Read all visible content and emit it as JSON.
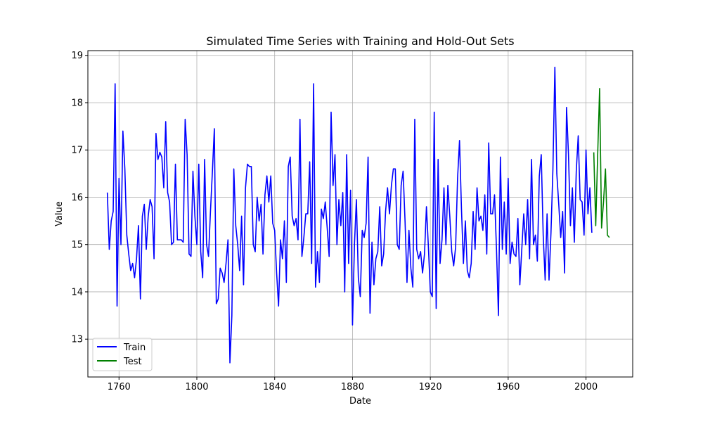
{
  "chart_data": {
    "type": "line",
    "title": "Simulated Time Series with Training and Hold-Out Sets",
    "xlabel": "Date",
    "ylabel": "Value",
    "xlim": [
      1744,
      2024
    ],
    "ylim": [
      12.2,
      19.1
    ],
    "x_ticks": [
      1760,
      1800,
      1840,
      1880,
      1920,
      1960,
      2000
    ],
    "y_ticks": [
      13,
      14,
      15,
      16,
      17,
      18,
      19
    ],
    "grid": true,
    "legend_position": "bottom-left",
    "series": [
      {
        "name": "Train",
        "color": "#0000ff",
        "x": [
          1754,
          1755,
          1756,
          1757,
          1758,
          1759,
          1760,
          1761,
          1762,
          1763,
          1764,
          1765,
          1766,
          1767,
          1768,
          1769,
          1770,
          1771,
          1772,
          1773,
          1774,
          1775,
          1776,
          1777,
          1778,
          1779,
          1780,
          1781,
          1782,
          1783,
          1784,
          1785,
          1786,
          1787,
          1788,
          1789,
          1790,
          1791,
          1792,
          1793,
          1794,
          1795,
          1796,
          1797,
          1798,
          1799,
          1800,
          1801,
          1802,
          1803,
          1804,
          1805,
          1806,
          1807,
          1808,
          1809,
          1810,
          1811,
          1812,
          1813,
          1814,
          1815,
          1816,
          1817,
          1818,
          1819,
          1820,
          1821,
          1822,
          1823,
          1824,
          1825,
          1826,
          1827,
          1828,
          1829,
          1830,
          1831,
          1832,
          1833,
          1834,
          1835,
          1836,
          1837,
          1838,
          1839,
          1840,
          1841,
          1842,
          1843,
          1844,
          1845,
          1846,
          1847,
          1848,
          1849,
          1850,
          1851,
          1852,
          1853,
          1854,
          1855,
          1856,
          1857,
          1858,
          1859,
          1860,
          1861,
          1862,
          1863,
          1864,
          1865,
          1866,
          1867,
          1868,
          1869,
          1870,
          1871,
          1872,
          1873,
          1874,
          1875,
          1876,
          1877,
          1878,
          1879,
          1880,
          1881,
          1882,
          1883,
          1884,
          1885,
          1886,
          1887,
          1888,
          1889,
          1890,
          1891,
          1892,
          1893,
          1894,
          1895,
          1896,
          1897,
          1898,
          1899,
          1900,
          1901,
          1902,
          1903,
          1904,
          1905,
          1906,
          1907,
          1908,
          1909,
          1910,
          1911,
          1912,
          1913,
          1914,
          1915,
          1916,
          1917,
          1918,
          1919,
          1920,
          1921,
          1922,
          1923,
          1924,
          1925,
          1926,
          1927,
          1928,
          1929,
          1930,
          1931,
          1932,
          1933,
          1934,
          1935,
          1936,
          1937,
          1938,
          1939,
          1940,
          1941,
          1942,
          1943,
          1944,
          1945,
          1946,
          1947,
          1948,
          1949,
          1950,
          1951,
          1952,
          1953,
          1954,
          1955,
          1956,
          1957,
          1958,
          1959,
          1960,
          1961,
          1962,
          1963,
          1964,
          1965,
          1966,
          1967,
          1968,
          1969,
          1970,
          1971,
          1972,
          1973,
          1974,
          1975,
          1976,
          1977,
          1978,
          1979,
          1980,
          1981,
          1982,
          1983,
          1984,
          1985,
          1986,
          1987,
          1988,
          1989,
          1990,
          1991,
          1992,
          1993,
          1994,
          1995,
          1996,
          1997,
          1998,
          1999,
          2000,
          2001,
          2002,
          2003
        ],
        "values": [
          16.1,
          14.9,
          15.5,
          15.7,
          18.4,
          13.7,
          16.4,
          15.0,
          17.4,
          16.6,
          15.2,
          14.8,
          14.45,
          14.6,
          14.3,
          14.7,
          15.4,
          13.85,
          15.6,
          15.85,
          14.9,
          15.6,
          15.95,
          15.8,
          14.7,
          17.35,
          16.8,
          16.95,
          16.85,
          16.2,
          17.6,
          16.1,
          15.9,
          15.0,
          15.05,
          16.7,
          15.1,
          15.1,
          15.1,
          15.05,
          17.65,
          16.9,
          14.8,
          14.75,
          16.55,
          15.6,
          15.0,
          16.7,
          14.85,
          14.3,
          16.8,
          15.0,
          14.75,
          15.7,
          16.55,
          17.45,
          13.75,
          13.85,
          14.5,
          14.4,
          14.2,
          14.6,
          15.1,
          12.5,
          13.5,
          16.6,
          15.4,
          15.0,
          14.45,
          15.6,
          14.15,
          16.2,
          16.7,
          16.65,
          16.65,
          15.0,
          14.85,
          16.0,
          15.5,
          15.85,
          14.8,
          16.05,
          16.45,
          15.9,
          16.45,
          15.45,
          15.3,
          14.4,
          13.7,
          15.1,
          14.7,
          15.5,
          14.2,
          16.65,
          16.85,
          15.6,
          15.4,
          15.55,
          15.1,
          17.65,
          14.75,
          15.15,
          15.65,
          15.65,
          16.75,
          14.6,
          18.4,
          14.1,
          14.85,
          14.2,
          15.75,
          15.55,
          15.9,
          15.35,
          14.75,
          17.8,
          16.25,
          16.9,
          15.0,
          15.95,
          15.4,
          16.1,
          14.0,
          16.9,
          14.6,
          16.15,
          13.3,
          15.0,
          15.95,
          14.3,
          13.9,
          15.3,
          15.15,
          15.45,
          16.85,
          13.55,
          15.05,
          14.15,
          14.7,
          14.85,
          15.8,
          14.55,
          14.8,
          15.7,
          16.2,
          15.65,
          16.25,
          16.6,
          16.6,
          15.0,
          14.9,
          16.25,
          16.55,
          15.5,
          14.2,
          15.3,
          14.5,
          14.1,
          17.65,
          14.9,
          14.7,
          14.85,
          14.4,
          14.8,
          15.8,
          14.95,
          14.0,
          13.9,
          17.8,
          13.65,
          16.8,
          14.6,
          15.1,
          16.2,
          15.0,
          16.25,
          15.6,
          14.85,
          14.55,
          14.95,
          16.4,
          17.2,
          15.75,
          14.6,
          15.5,
          14.45,
          14.3,
          14.6,
          15.7,
          14.9,
          16.2,
          15.5,
          15.6,
          15.3,
          16.05,
          14.8,
          17.15,
          15.65,
          15.65,
          16.05,
          14.9,
          13.5,
          16.85,
          14.9,
          15.9,
          14.8,
          16.4,
          14.6,
          15.05,
          14.8,
          14.75,
          15.55,
          14.15,
          14.9,
          15.65,
          15.0,
          15.95,
          14.7,
          16.8,
          15.0,
          15.2,
          14.65,
          16.45,
          16.9,
          15.2,
          14.25,
          15.65,
          14.25,
          15.25,
          16.6,
          18.75,
          16.5,
          15.85,
          15.15,
          15.7,
          14.4,
          17.9,
          16.9,
          15.4,
          16.2,
          15.05,
          16.55,
          17.3,
          15.95,
          15.9,
          15.2,
          17.0,
          15.65,
          16.2,
          15.25
        ]
      },
      {
        "name": "Test",
        "color": "#008000",
        "x": [
          2004,
          2005,
          2006,
          2007,
          2008,
          2009,
          2010,
          2011,
          2012
        ],
        "values": [
          16.95,
          15.4,
          16.9,
          18.3,
          15.35,
          15.9,
          16.6,
          15.2,
          15.15
        ]
      }
    ]
  }
}
